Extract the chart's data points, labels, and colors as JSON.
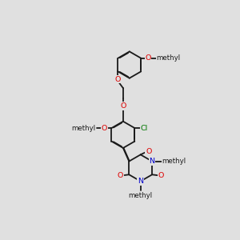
{
  "bg": "#e0e0e0",
  "bond_color": "#1a1a1a",
  "lw": 1.3,
  "dbo": 0.018,
  "colors": {
    "O": "#dd0000",
    "N": "#0000cc",
    "Cl": "#007700",
    "C": "#1a1a1a"
  },
  "fs": 6.8,
  "fs_me": 6.2,
  "xlim": [
    0,
    10
  ],
  "ylim": [
    0,
    10
  ]
}
